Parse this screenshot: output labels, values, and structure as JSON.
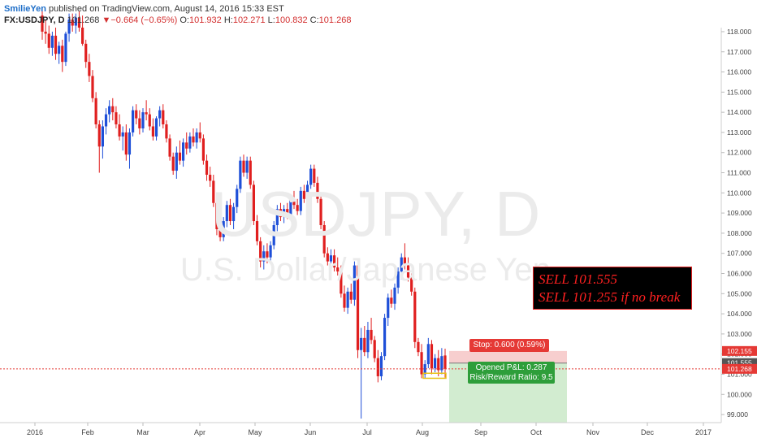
{
  "header": {
    "author": "SmilieYen",
    "published": "published on TradingView.com, August 14, 2016 15:33 EST",
    "symbol": "FX:USDJPY, D",
    "last": "101.268",
    "change": "−0.664 (−0.65%)",
    "o_label": "O:",
    "o_value": "101.932",
    "h_label": "H:",
    "h_value": "102.271",
    "l_label": "L:",
    "l_value": "100.832",
    "c_label": "C:",
    "c_value": "101.268"
  },
  "watermark": {
    "symbol": "USDJPY, D",
    "name": "U.S. Dollar/Japanese Yen"
  },
  "annotation": {
    "line1": "SELL 101.555",
    "line2": "SELL 101.255 if no break"
  },
  "position": {
    "stop_label": "Stop: 0.600 (0.59%)",
    "pnl_label": "Opened P&L: 0.287",
    "rr_label": "Risk/Reward Ratio: 9.5"
  },
  "colors": {
    "up": "#1e4fd8",
    "down": "#e01f1f",
    "stop_zone": "#f6c5c5",
    "target_zone": "#cdeacb",
    "accent": "#2e9e3a"
  },
  "chart_data": {
    "type": "candlestick",
    "xlabels": [
      "2016",
      "Feb",
      "Mar",
      "Apr",
      "May",
      "Jun",
      "Jul",
      "Aug",
      "Sep",
      "Oct",
      "Nov",
      "Dec",
      "2017"
    ],
    "ytick_labels": [
      "99.000",
      "100.000",
      "101.000",
      "102.000",
      "103.000",
      "104.000",
      "105.000",
      "106.000",
      "107.000",
      "108.000",
      "109.000",
      "110.000",
      "111.000",
      "112.000",
      "113.000",
      "114.000",
      "115.000",
      "116.000",
      "117.000",
      "118.000"
    ],
    "ylim": [
      98.6,
      118.2
    ],
    "price_labels": [
      {
        "text": "102.155",
        "value": 102.155,
        "color": "#e53935"
      },
      {
        "text": "101.555",
        "value": 101.555,
        "color": "#555555"
      },
      {
        "text": "101.268",
        "value": 101.268,
        "color": "#e53935"
      }
    ],
    "current_price": 101.268,
    "entry": 101.555,
    "stop": 102.155,
    "target_low": 98.6,
    "candles": [
      {
        "o": 118.8,
        "h": 119.1,
        "l": 117.6,
        "c": 118.0
      },
      {
        "o": 118.0,
        "h": 118.6,
        "l": 117.4,
        "c": 117.9
      },
      {
        "o": 117.9,
        "h": 118.3,
        "l": 116.9,
        "c": 117.2
      },
      {
        "o": 117.2,
        "h": 118.0,
        "l": 116.8,
        "c": 117.8
      },
      {
        "o": 117.8,
        "h": 118.2,
        "l": 116.6,
        "c": 116.9
      },
      {
        "o": 116.9,
        "h": 117.5,
        "l": 116.4,
        "c": 117.3
      },
      {
        "o": 117.3,
        "h": 117.6,
        "l": 116.0,
        "c": 116.5
      },
      {
        "o": 116.5,
        "h": 118.0,
        "l": 116.3,
        "c": 117.9
      },
      {
        "o": 117.9,
        "h": 118.9,
        "l": 117.5,
        "c": 118.6
      },
      {
        "o": 118.6,
        "h": 118.9,
        "l": 118.0,
        "c": 118.3
      },
      {
        "o": 118.3,
        "h": 118.9,
        "l": 117.9,
        "c": 118.7
      },
      {
        "o": 118.7,
        "h": 119.0,
        "l": 118.0,
        "c": 118.2
      },
      {
        "o": 118.2,
        "h": 118.8,
        "l": 117.3,
        "c": 117.4
      },
      {
        "o": 117.4,
        "h": 117.6,
        "l": 116.2,
        "c": 116.5
      },
      {
        "o": 116.5,
        "h": 116.9,
        "l": 115.5,
        "c": 115.8
      },
      {
        "o": 115.8,
        "h": 116.1,
        "l": 114.5,
        "c": 114.7
      },
      {
        "o": 114.7,
        "h": 115.0,
        "l": 113.2,
        "c": 113.4
      },
      {
        "o": 113.4,
        "h": 113.6,
        "l": 111.0,
        "c": 112.3
      },
      {
        "o": 112.3,
        "h": 113.6,
        "l": 111.7,
        "c": 113.3
      },
      {
        "o": 113.3,
        "h": 114.2,
        "l": 112.9,
        "c": 113.9
      },
      {
        "o": 113.9,
        "h": 114.6,
        "l": 113.5,
        "c": 114.3
      },
      {
        "o": 114.3,
        "h": 114.7,
        "l": 113.6,
        "c": 114.0
      },
      {
        "o": 114.0,
        "h": 114.3,
        "l": 113.2,
        "c": 113.4
      },
      {
        "o": 113.4,
        "h": 113.9,
        "l": 112.6,
        "c": 112.8
      },
      {
        "o": 112.8,
        "h": 113.3,
        "l": 112.1,
        "c": 113.0
      },
      {
        "o": 113.0,
        "h": 113.4,
        "l": 111.6,
        "c": 111.9
      },
      {
        "o": 111.9,
        "h": 113.2,
        "l": 111.2,
        "c": 113.0
      },
      {
        "o": 113.0,
        "h": 114.3,
        "l": 112.8,
        "c": 114.1
      },
      {
        "o": 114.1,
        "h": 114.4,
        "l": 113.4,
        "c": 113.7
      },
      {
        "o": 113.7,
        "h": 114.1,
        "l": 112.9,
        "c": 113.2
      },
      {
        "o": 113.2,
        "h": 114.2,
        "l": 113.0,
        "c": 114.0
      },
      {
        "o": 114.0,
        "h": 114.6,
        "l": 113.6,
        "c": 113.9
      },
      {
        "o": 113.9,
        "h": 114.2,
        "l": 113.1,
        "c": 113.3
      },
      {
        "o": 113.3,
        "h": 113.7,
        "l": 112.6,
        "c": 112.8
      },
      {
        "o": 112.8,
        "h": 113.8,
        "l": 112.6,
        "c": 113.7
      },
      {
        "o": 113.7,
        "h": 114.3,
        "l": 113.3,
        "c": 114.1
      },
      {
        "o": 114.1,
        "h": 114.4,
        "l": 113.2,
        "c": 113.4
      },
      {
        "o": 113.4,
        "h": 113.6,
        "l": 112.5,
        "c": 112.7
      },
      {
        "o": 112.7,
        "h": 112.9,
        "l": 111.6,
        "c": 111.8
      },
      {
        "o": 111.8,
        "h": 112.0,
        "l": 110.9,
        "c": 111.1
      },
      {
        "o": 111.1,
        "h": 112.3,
        "l": 110.7,
        "c": 112.0
      },
      {
        "o": 112.0,
        "h": 112.6,
        "l": 111.4,
        "c": 111.6
      },
      {
        "o": 111.6,
        "h": 112.7,
        "l": 111.3,
        "c": 112.5
      },
      {
        "o": 112.5,
        "h": 113.0,
        "l": 111.9,
        "c": 112.2
      },
      {
        "o": 112.2,
        "h": 113.0,
        "l": 112.0,
        "c": 112.8
      },
      {
        "o": 112.8,
        "h": 113.2,
        "l": 112.3,
        "c": 112.5
      },
      {
        "o": 112.5,
        "h": 113.2,
        "l": 112.2,
        "c": 113.0
      },
      {
        "o": 113.0,
        "h": 113.5,
        "l": 112.5,
        "c": 112.7
      },
      {
        "o": 112.7,
        "h": 112.9,
        "l": 111.4,
        "c": 111.6
      },
      {
        "o": 111.6,
        "h": 111.9,
        "l": 110.6,
        "c": 110.9
      },
      {
        "o": 110.9,
        "h": 111.3,
        "l": 110.3,
        "c": 110.6
      },
      {
        "o": 110.6,
        "h": 110.9,
        "l": 109.3,
        "c": 109.5
      },
      {
        "o": 109.5,
        "h": 109.8,
        "l": 107.9,
        "c": 108.2
      },
      {
        "o": 108.2,
        "h": 108.5,
        "l": 107.6,
        "c": 107.8
      },
      {
        "o": 107.8,
        "h": 108.8,
        "l": 107.6,
        "c": 108.6
      },
      {
        "o": 108.6,
        "h": 109.6,
        "l": 108.3,
        "c": 109.4
      },
      {
        "o": 109.4,
        "h": 109.7,
        "l": 108.4,
        "c": 108.6
      },
      {
        "o": 108.6,
        "h": 109.5,
        "l": 108.2,
        "c": 109.3
      },
      {
        "o": 109.3,
        "h": 110.4,
        "l": 109.0,
        "c": 110.2
      },
      {
        "o": 110.2,
        "h": 111.8,
        "l": 110.0,
        "c": 111.6
      },
      {
        "o": 111.6,
        "h": 111.9,
        "l": 110.8,
        "c": 111.0
      },
      {
        "o": 111.0,
        "h": 111.8,
        "l": 110.7,
        "c": 111.6
      },
      {
        "o": 111.6,
        "h": 111.8,
        "l": 110.2,
        "c": 110.4
      },
      {
        "o": 110.4,
        "h": 110.6,
        "l": 108.4,
        "c": 108.6
      },
      {
        "o": 108.6,
        "h": 108.9,
        "l": 107.4,
        "c": 107.6
      },
      {
        "o": 107.6,
        "h": 107.8,
        "l": 106.3,
        "c": 106.6
      },
      {
        "o": 106.6,
        "h": 107.4,
        "l": 106.2,
        "c": 107.1
      },
      {
        "o": 107.1,
        "h": 107.5,
        "l": 106.5,
        "c": 106.8
      },
      {
        "o": 106.8,
        "h": 107.6,
        "l": 106.6,
        "c": 107.4
      },
      {
        "o": 107.4,
        "h": 108.6,
        "l": 107.2,
        "c": 108.4
      },
      {
        "o": 108.4,
        "h": 109.4,
        "l": 108.1,
        "c": 109.2
      },
      {
        "o": 109.2,
        "h": 109.5,
        "l": 108.6,
        "c": 108.8
      },
      {
        "o": 108.8,
        "h": 109.4,
        "l": 108.5,
        "c": 109.2
      },
      {
        "o": 109.2,
        "h": 109.5,
        "l": 108.7,
        "c": 108.9
      },
      {
        "o": 108.9,
        "h": 109.9,
        "l": 108.7,
        "c": 109.7
      },
      {
        "o": 109.7,
        "h": 110.1,
        "l": 109.2,
        "c": 109.4
      },
      {
        "o": 109.4,
        "h": 109.7,
        "l": 108.9,
        "c": 109.1
      },
      {
        "o": 109.1,
        "h": 110.3,
        "l": 108.9,
        "c": 110.1
      },
      {
        "o": 110.1,
        "h": 110.4,
        "l": 109.5,
        "c": 109.7
      },
      {
        "o": 109.7,
        "h": 110.6,
        "l": 109.5,
        "c": 110.4
      },
      {
        "o": 110.4,
        "h": 111.4,
        "l": 110.2,
        "c": 111.2
      },
      {
        "o": 111.2,
        "h": 111.4,
        "l": 110.3,
        "c": 110.5
      },
      {
        "o": 110.5,
        "h": 110.8,
        "l": 109.5,
        "c": 109.7
      },
      {
        "o": 109.7,
        "h": 110.0,
        "l": 108.2,
        "c": 108.4
      },
      {
        "o": 108.4,
        "h": 108.6,
        "l": 106.8,
        "c": 107.0
      },
      {
        "o": 107.0,
        "h": 107.3,
        "l": 106.4,
        "c": 106.6
      },
      {
        "o": 106.6,
        "h": 107.2,
        "l": 106.2,
        "c": 106.9
      },
      {
        "o": 106.9,
        "h": 107.2,
        "l": 106.1,
        "c": 106.3
      },
      {
        "o": 106.3,
        "h": 106.8,
        "l": 105.9,
        "c": 106.1
      },
      {
        "o": 106.1,
        "h": 106.4,
        "l": 104.8,
        "c": 105.0
      },
      {
        "o": 105.0,
        "h": 105.4,
        "l": 104.1,
        "c": 104.3
      },
      {
        "o": 104.3,
        "h": 105.3,
        "l": 104.0,
        "c": 105.1
      },
      {
        "o": 105.1,
        "h": 105.5,
        "l": 104.5,
        "c": 104.7
      },
      {
        "o": 104.7,
        "h": 106.6,
        "l": 104.4,
        "c": 106.4
      },
      {
        "o": 106.4,
        "h": 106.7,
        "l": 101.8,
        "c": 102.2
      },
      {
        "o": 102.2,
        "h": 103.3,
        "l": 98.8,
        "c": 102.8
      },
      {
        "o": 102.8,
        "h": 103.4,
        "l": 101.9,
        "c": 102.1
      },
      {
        "o": 102.1,
        "h": 103.6,
        "l": 101.8,
        "c": 103.2
      },
      {
        "o": 103.2,
        "h": 103.8,
        "l": 102.5,
        "c": 102.7
      },
      {
        "o": 102.7,
        "h": 102.9,
        "l": 101.6,
        "c": 101.8
      },
      {
        "o": 101.8,
        "h": 102.2,
        "l": 100.6,
        "c": 100.9
      },
      {
        "o": 100.9,
        "h": 102.1,
        "l": 100.7,
        "c": 101.9
      },
      {
        "o": 101.9,
        "h": 104.0,
        "l": 101.7,
        "c": 103.8
      },
      {
        "o": 103.8,
        "h": 105.0,
        "l": 103.4,
        "c": 104.8
      },
      {
        "o": 104.8,
        "h": 105.2,
        "l": 104.3,
        "c": 104.5
      },
      {
        "o": 104.5,
        "h": 105.5,
        "l": 104.2,
        "c": 105.3
      },
      {
        "o": 105.3,
        "h": 106.3,
        "l": 105.0,
        "c": 106.1
      },
      {
        "o": 106.1,
        "h": 107.0,
        "l": 105.7,
        "c": 106.8
      },
      {
        "o": 106.8,
        "h": 107.5,
        "l": 106.2,
        "c": 106.4
      },
      {
        "o": 106.4,
        "h": 106.8,
        "l": 105.6,
        "c": 105.8
      },
      {
        "o": 105.8,
        "h": 106.0,
        "l": 104.9,
        "c": 105.1
      },
      {
        "o": 105.1,
        "h": 105.3,
        "l": 102.3,
        "c": 102.6
      },
      {
        "o": 102.6,
        "h": 102.8,
        "l": 101.9,
        "c": 102.1
      },
      {
        "o": 102.1,
        "h": 102.5,
        "l": 100.8,
        "c": 101.0
      },
      {
        "o": 101.0,
        "h": 101.7,
        "l": 100.8,
        "c": 101.5
      },
      {
        "o": 101.5,
        "h": 102.8,
        "l": 101.3,
        "c": 102.5
      },
      {
        "o": 102.5,
        "h": 102.7,
        "l": 101.0,
        "c": 101.3
      },
      {
        "o": 101.3,
        "h": 102.0,
        "l": 101.1,
        "c": 101.8
      },
      {
        "o": 101.8,
        "h": 102.2,
        "l": 100.9,
        "c": 101.2
      },
      {
        "o": 101.2,
        "h": 102.3,
        "l": 101.0,
        "c": 101.9
      },
      {
        "o": 101.932,
        "h": 102.271,
        "l": 100.832,
        "c": 101.268
      }
    ]
  }
}
